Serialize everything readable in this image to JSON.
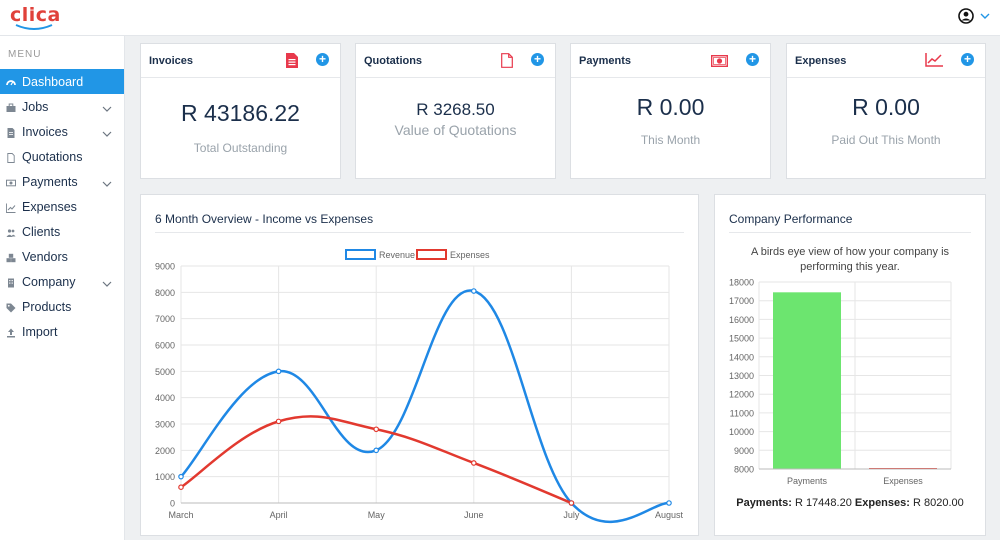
{
  "app": {
    "logo_text": "clica"
  },
  "header": {
    "user_icon": "user-circle-icon",
    "dropdown_icon": "chevron-down-icon"
  },
  "sidebar": {
    "menu_title": "MENU",
    "items": [
      {
        "label": "Dashboard",
        "icon": "dashboard-icon",
        "active": true,
        "has_children": false
      },
      {
        "label": "Jobs",
        "icon": "briefcase-icon",
        "active": false,
        "has_children": true
      },
      {
        "label": "Invoices",
        "icon": "invoice-icon",
        "active": false,
        "has_children": true
      },
      {
        "label": "Quotations",
        "icon": "document-icon",
        "active": false,
        "has_children": false
      },
      {
        "label": "Payments",
        "icon": "money-icon",
        "active": false,
        "has_children": true
      },
      {
        "label": "Expenses",
        "icon": "line-chart-icon",
        "active": false,
        "has_children": false
      },
      {
        "label": "Clients",
        "icon": "users-icon",
        "active": false,
        "has_children": false
      },
      {
        "label": "Vendors",
        "icon": "cubes-icon",
        "active": false,
        "has_children": false
      },
      {
        "label": "Company",
        "icon": "building-icon",
        "active": false,
        "has_children": true
      },
      {
        "label": "Products",
        "icon": "tags-icon",
        "active": false,
        "has_children": false
      },
      {
        "label": "Import",
        "icon": "upload-icon",
        "active": false,
        "has_children": false
      }
    ]
  },
  "stats": {
    "invoices": {
      "title": "Invoices",
      "value": "R 43186.22",
      "label": "Total Outstanding",
      "icon": "invoice-file-icon"
    },
    "quotations": {
      "title": "Quotations",
      "value": "R 3268.50",
      "label": "Value of Quotations",
      "icon": "file-outline-icon"
    },
    "payments": {
      "title": "Payments",
      "value": "R 0.00",
      "label": "This Month",
      "icon": "money-bill-icon"
    },
    "expenses": {
      "title": "Expenses",
      "value": "R 0.00",
      "label": "Paid Out This Month",
      "icon": "area-chart-icon"
    }
  },
  "colors": {
    "accent": "#2196e6",
    "revenue": "#1f88e5",
    "expenses_line": "#e2392f",
    "payments_bar": "#6ce56f",
    "icon_red": "#e8394c",
    "navy": "#1b2f4b"
  },
  "overview": {
    "title": "6 Month Overview - Income vs Expenses",
    "legend": [
      "Revenue",
      "Expenses"
    ]
  },
  "performance": {
    "title": "Company Performance",
    "description": "A birds eye view of how your company is performing this year.",
    "payments_label": "Payments:",
    "payments_value": "R 17448.20",
    "expenses_label": "Expenses:",
    "expenses_value": "R 8020.00"
  },
  "chart_data": [
    {
      "type": "line",
      "title": "",
      "categories": [
        "March",
        "April",
        "May",
        "June",
        "July",
        "August"
      ],
      "series": [
        {
          "name": "Revenue",
          "values": [
            1000,
            5000,
            2000,
            8050,
            0,
            0
          ],
          "color": "#1f88e5"
        },
        {
          "name": "Expenses",
          "values": [
            600,
            3100,
            2800,
            1520,
            0,
            null
          ],
          "color": "#e2392f"
        }
      ],
      "ylim": [
        0,
        9000
      ],
      "yticks": [
        0,
        1000,
        2000,
        3000,
        4000,
        5000,
        6000,
        7000,
        8000,
        9000
      ],
      "grid": true,
      "legend": "top-center"
    },
    {
      "type": "bar",
      "title": "",
      "categories": [
        "Payments",
        "Expenses"
      ],
      "values": [
        17448.2,
        8020
      ],
      "colors": [
        "#6ce56f",
        "#e2392f"
      ],
      "ylim": [
        8000,
        18000
      ],
      "yticks": [
        8000,
        9000,
        10000,
        11000,
        12000,
        13000,
        14000,
        15000,
        16000,
        17000,
        18000
      ],
      "grid": true
    }
  ]
}
